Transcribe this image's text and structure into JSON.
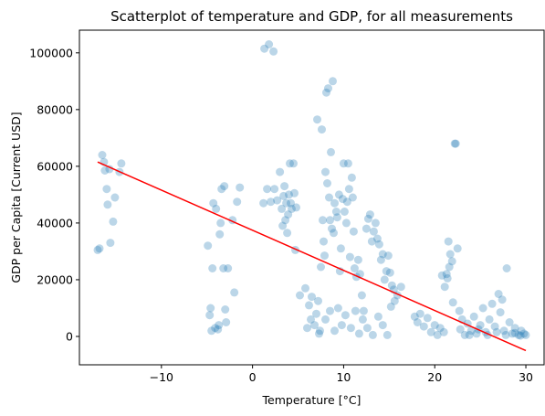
{
  "chart_data": {
    "type": "scatter",
    "title": "Scatterplot of temperature and GDP, for all measurements",
    "xlabel": "Temperature [°C]",
    "ylabel": "GDP per Capita [Current USD]",
    "xlim": [
      -19,
      32
    ],
    "ylim": [
      -10000,
      108000
    ],
    "x_ticks": [
      -10,
      0,
      10,
      20,
      30
    ],
    "x_tick_labels": [
      "−10",
      "0",
      "10",
      "20",
      "30"
    ],
    "y_ticks": [
      0,
      20000,
      40000,
      60000,
      80000,
      100000
    ],
    "y_tick_labels": [
      "0",
      "20000",
      "40000",
      "60000",
      "80000",
      "100000"
    ],
    "grid": false,
    "point_color": "#1f77b4",
    "line_color": "#ff0000",
    "series": [
      {
        "type": "scatter",
        "points": [
          [
            -17,
            30500
          ],
          [
            -16.8,
            31000
          ],
          [
            -16.5,
            64000
          ],
          [
            -16.3,
            61500
          ],
          [
            -16.2,
            58500
          ],
          [
            -16,
            52000
          ],
          [
            -15.9,
            46500
          ],
          [
            -15.7,
            59000
          ],
          [
            -15.6,
            33000
          ],
          [
            -15.3,
            40500
          ],
          [
            -15.1,
            49000
          ],
          [
            -14.6,
            58000
          ],
          [
            -14.4,
            61000
          ],
          [
            -4.9,
            32000
          ],
          [
            -4.7,
            7500
          ],
          [
            -4.6,
            10000
          ],
          [
            -4.5,
            2000
          ],
          [
            -4.4,
            24000
          ],
          [
            -4.3,
            47000
          ],
          [
            -4.1,
            3000
          ],
          [
            -4,
            45000
          ],
          [
            -3.8,
            2500
          ],
          [
            -3.7,
            4000
          ],
          [
            -3.6,
            36000
          ],
          [
            -3.5,
            40000
          ],
          [
            -3.4,
            52000
          ],
          [
            -3.2,
            24000
          ],
          [
            -3.1,
            53000
          ],
          [
            -3,
            9500
          ],
          [
            -2.9,
            5000
          ],
          [
            -2.7,
            24000
          ],
          [
            -2.2,
            41000
          ],
          [
            -2,
            15500
          ],
          [
            -1.7,
            47500
          ],
          [
            -1.4,
            52500
          ],
          [
            1.3,
            101500
          ],
          [
            1.8,
            103000
          ],
          [
            2.3,
            100500
          ],
          [
            1.2,
            47000
          ],
          [
            1.6,
            52000
          ],
          [
            2,
            47500
          ],
          [
            2.4,
            52000
          ],
          [
            2.7,
            48000
          ],
          [
            3,
            58000
          ],
          [
            3.2,
            45000
          ],
          [
            3.4,
            49500
          ],
          [
            3.5,
            53000
          ],
          [
            3.6,
            41000
          ],
          [
            3.7,
            47000
          ],
          [
            3.8,
            36500
          ],
          [
            3.9,
            43000
          ],
          [
            4,
            50000
          ],
          [
            4.1,
            61000
          ],
          [
            4.3,
            45000
          ],
          [
            4.5,
            61000
          ],
          [
            4.6,
            50500
          ],
          [
            4.7,
            30500
          ],
          [
            4.8,
            45500
          ],
          [
            4.2,
            47000
          ],
          [
            3.3,
            39000
          ],
          [
            7.1,
            76500
          ],
          [
            7.6,
            73000
          ],
          [
            8.1,
            86000
          ],
          [
            8.3,
            87500
          ],
          [
            8.8,
            90000
          ],
          [
            8.6,
            65000
          ],
          [
            5.2,
            14500
          ],
          [
            5.8,
            17000
          ],
          [
            6.2,
            11000
          ],
          [
            6.5,
            14000
          ],
          [
            6.8,
            4000
          ],
          [
            7,
            8000
          ],
          [
            7.2,
            12500
          ],
          [
            7.3,
            1000
          ],
          [
            7.5,
            24500
          ],
          [
            7.7,
            41000
          ],
          [
            7.8,
            33500
          ],
          [
            7.9,
            28500
          ],
          [
            8,
            58000
          ],
          [
            8.2,
            54000
          ],
          [
            8.4,
            49000
          ],
          [
            8.5,
            41000
          ],
          [
            8.7,
            38000
          ],
          [
            8.9,
            36500
          ],
          [
            9,
            47000
          ],
          [
            9.2,
            44000
          ],
          [
            9.3,
            42000
          ],
          [
            9.5,
            50000
          ],
          [
            9.6,
            23000
          ],
          [
            9.7,
            31000
          ],
          [
            9.9,
            48500
          ],
          [
            10,
            61000
          ],
          [
            10.1,
            44000
          ],
          [
            10.3,
            40000
          ],
          [
            10.4,
            47500
          ],
          [
            10.5,
            61000
          ],
          [
            10.6,
            52000
          ],
          [
            10.7,
            28000
          ],
          [
            10.9,
            56000
          ],
          [
            11,
            49000
          ],
          [
            11.1,
            37000
          ],
          [
            11.2,
            24000
          ],
          [
            11.4,
            21000
          ],
          [
            11.6,
            27000
          ],
          [
            11.8,
            22000
          ],
          [
            12,
            14500
          ],
          [
            12.2,
            9000
          ],
          [
            6,
            3000
          ],
          [
            6.4,
            6000
          ],
          [
            7.4,
            2000
          ],
          [
            8,
            6000
          ],
          [
            8.5,
            9000
          ],
          [
            9,
            2000
          ],
          [
            9.4,
            10000
          ],
          [
            9.8,
            4000
          ],
          [
            10.2,
            7500
          ],
          [
            10.8,
            3000
          ],
          [
            11.3,
            9000
          ],
          [
            11.7,
            1000
          ],
          [
            12.1,
            6000
          ],
          [
            12.6,
            3000
          ],
          [
            13.2,
            500
          ],
          [
            13.8,
            7000
          ],
          [
            14.3,
            4000
          ],
          [
            14.8,
            500
          ],
          [
            15.2,
            10500
          ],
          [
            15.6,
            12500
          ],
          [
            15.9,
            14500
          ],
          [
            16.3,
            17500
          ],
          [
            12.5,
            38000
          ],
          [
            12.7,
            41500
          ],
          [
            12.9,
            43000
          ],
          [
            13.1,
            33500
          ],
          [
            13.3,
            37000
          ],
          [
            13.5,
            40000
          ],
          [
            13.7,
            34500
          ],
          [
            13.9,
            32500
          ],
          [
            14.1,
            27000
          ],
          [
            14.3,
            29000
          ],
          [
            14.5,
            20000
          ],
          [
            14.7,
            23000
          ],
          [
            14.9,
            28500
          ],
          [
            15.1,
            22500
          ],
          [
            15.3,
            18000
          ],
          [
            15.5,
            16500
          ],
          [
            17.8,
            7000
          ],
          [
            18.1,
            5000
          ],
          [
            18.4,
            8000
          ],
          [
            18.8,
            3500
          ],
          [
            19.2,
            6500
          ],
          [
            19.6,
            1500
          ],
          [
            20,
            4000
          ],
          [
            20.3,
            500
          ],
          [
            20.6,
            3000
          ],
          [
            21,
            1500
          ],
          [
            21.3,
            22000
          ],
          [
            21.5,
            33500
          ],
          [
            21.7,
            29000
          ],
          [
            21.9,
            26500
          ],
          [
            22,
            12000
          ],
          [
            22.2,
            68000
          ],
          [
            22.3,
            68000
          ],
          [
            22.5,
            31000
          ],
          [
            22.7,
            9000
          ],
          [
            23,
            6000
          ],
          [
            23.3,
            500
          ],
          [
            23.6,
            4500
          ],
          [
            24,
            2000
          ],
          [
            24.3,
            7000
          ],
          [
            24.6,
            1000
          ],
          [
            25,
            4000
          ],
          [
            25.3,
            10000
          ],
          [
            25.6,
            1500
          ],
          [
            26,
            6000
          ],
          [
            26.3,
            11500
          ],
          [
            26.6,
            3500
          ],
          [
            27,
            15000
          ],
          [
            27.2,
            8500
          ],
          [
            27.4,
            13000
          ],
          [
            27.6,
            2000
          ],
          [
            27.9,
            24000
          ],
          [
            28.2,
            5000
          ],
          [
            28.5,
            1000
          ],
          [
            28.8,
            3000
          ],
          [
            29.2,
            500
          ],
          [
            29.5,
            2000
          ],
          [
            29.8,
            1000
          ],
          [
            30,
            500
          ],
          [
            20.8,
            21500
          ],
          [
            21.1,
            17500
          ],
          [
            21.4,
            20500
          ],
          [
            21.6,
            24500
          ],
          [
            22.8,
            2500
          ],
          [
            23.8,
            500
          ],
          [
            24.8,
            2500
          ],
          [
            25.8,
            500
          ],
          [
            26.8,
            1500
          ],
          [
            27.8,
            500
          ],
          [
            28.8,
            1200
          ],
          [
            29.4,
            300
          ]
        ]
      },
      {
        "type": "line",
        "points": [
          [
            -17,
            61500
          ],
          [
            30,
            -5000
          ]
        ]
      }
    ]
  }
}
